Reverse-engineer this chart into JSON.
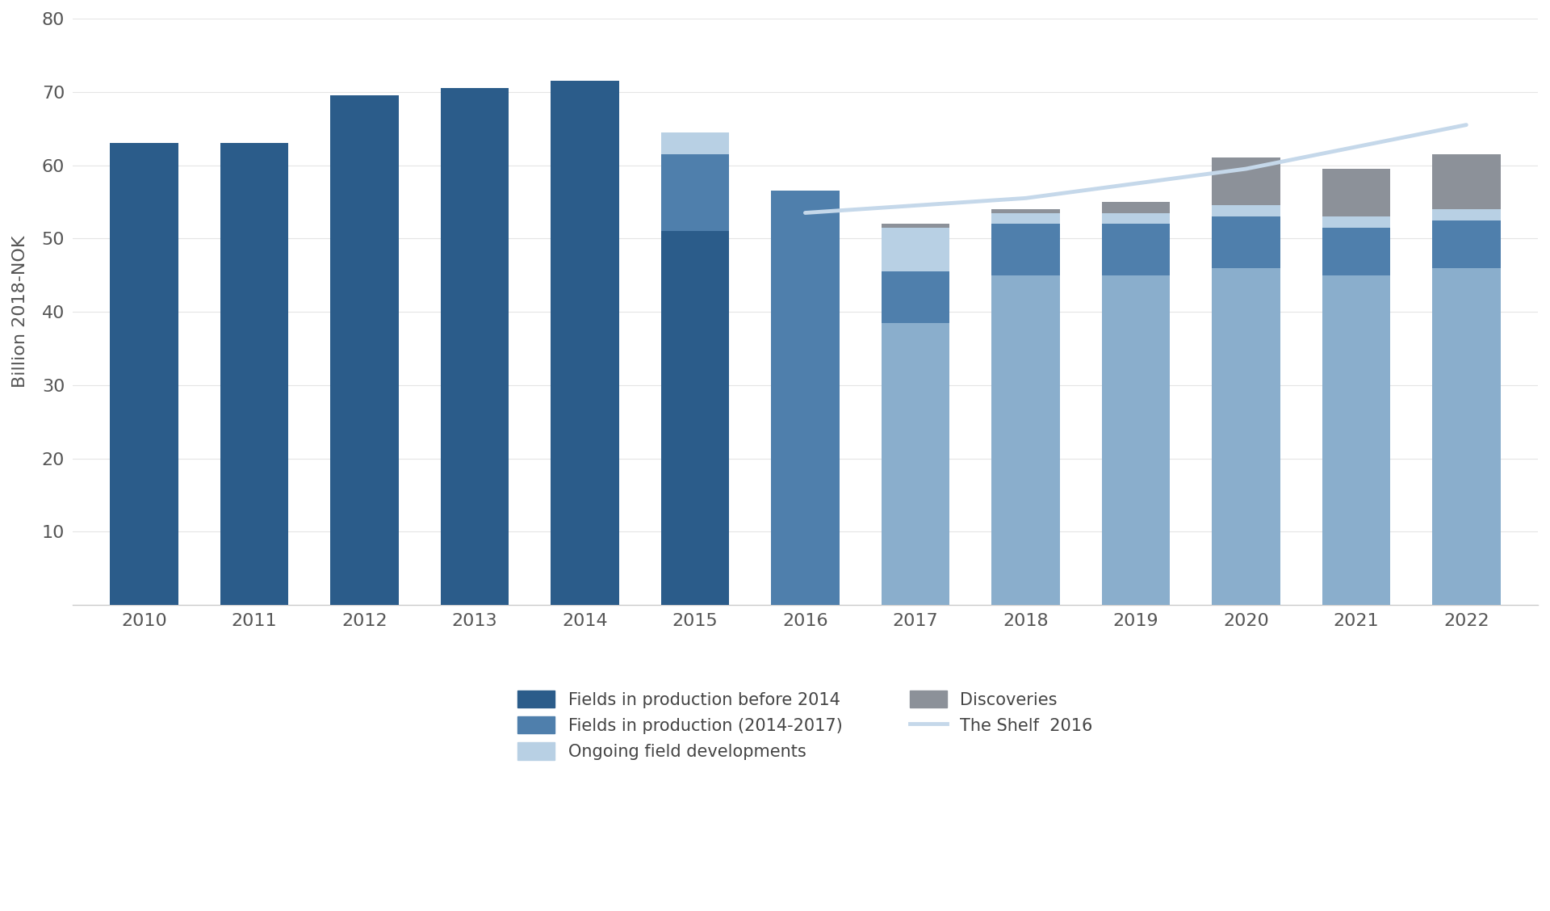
{
  "years": [
    2010,
    2011,
    2012,
    2013,
    2014,
    2015,
    2016,
    2017,
    2018,
    2019,
    2020,
    2021,
    2022
  ],
  "fields_before_2014": [
    63,
    63,
    69.5,
    70.5,
    71.5,
    51.0,
    0,
    0,
    0,
    0,
    0,
    0,
    0
  ],
  "fields_2014_2017": [
    0,
    0,
    0,
    0,
    0,
    10.5,
    56.5,
    7.0,
    7.0,
    7.0,
    7.0,
    6.5,
    6.5
  ],
  "ongoing_field_dev": [
    0,
    0,
    0,
    0,
    0,
    3.0,
    0,
    6.0,
    1.5,
    1.5,
    1.5,
    1.5,
    1.5
  ],
  "discoveries": [
    0,
    0,
    0,
    0,
    0,
    0,
    0,
    0.5,
    0.5,
    1.5,
    6.5,
    6.5,
    7.5
  ],
  "base_light_blue": [
    0,
    0,
    0,
    0,
    0,
    0,
    0,
    38.5,
    45.0,
    45.0,
    46.0,
    45.0,
    46.0
  ],
  "shelf_2016_line_x": [
    6,
    7,
    8,
    9,
    10,
    11,
    12
  ],
  "shelf_2016_line_y": [
    53.5,
    54.5,
    55.5,
    57.5,
    59.5,
    62.5,
    65.5
  ],
  "color_before_2014": "#2b5c8a",
  "color_2014_2017": "#4f7fac",
  "color_base_light": "#8aaecc",
  "color_ongoing": "#b8d0e4",
  "color_discoveries": "#8c9199",
  "color_shelf_line": "#c5d8ea",
  "ylabel": "Billion 2018-NOK",
  "ylim": [
    0,
    80
  ],
  "yticks": [
    0,
    10,
    20,
    30,
    40,
    50,
    60,
    70,
    80
  ],
  "legend_labels": [
    "Fields in production before 2014",
    "Fields in production (2014-2017)",
    "Ongoing field developments",
    "Discoveries",
    "The Shelf  2016"
  ],
  "background_color": "#ffffff"
}
